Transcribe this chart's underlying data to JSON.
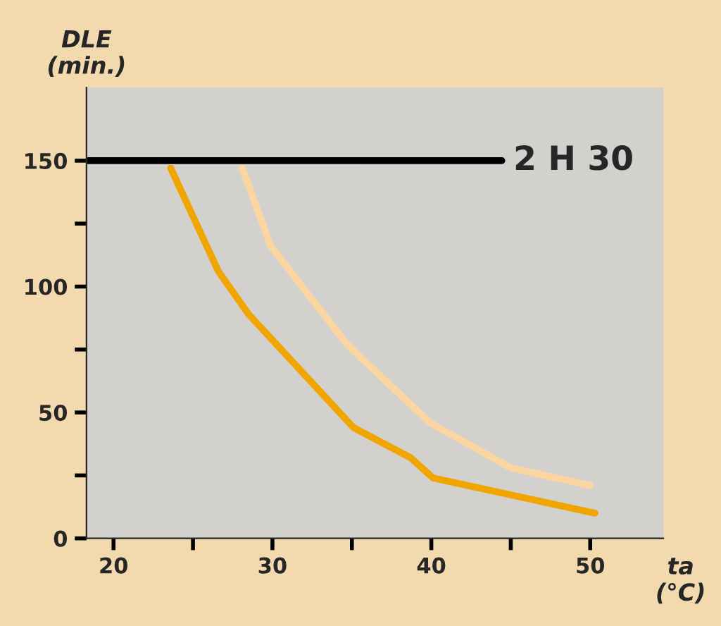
{
  "chart_data": {
    "type": "line",
    "xlabel": "ta\n(°C)",
    "ylabel": "DLE\n(min.)",
    "series": [
      {
        "color": "#f0a500",
        "x": [
          23.6,
          26.6,
          28.5,
          35.1,
          38.7,
          40.1,
          50.3
        ],
        "values": [
          147,
          106,
          89,
          44,
          32,
          24,
          10
        ]
      },
      {
        "color": "#fcd6a0",
        "x": [
          28.1,
          29.9,
          34.7,
          39.9,
          45,
          50
        ],
        "values": [
          147,
          116,
          77,
          46,
          28,
          21
        ]
      }
    ],
    "xlim": [
      18.3,
      54.6
    ],
    "ylim": [
      0,
      179
    ],
    "xticks": [
      20,
      {
        "value": 25,
        "label": null
      },
      30,
      {
        "value": 35,
        "label": null
      },
      40,
      {
        "value": 45,
        "label": null
      },
      50
    ],
    "yticks": [
      0,
      {
        "value": 25,
        "label": null
      },
      50,
      {
        "value": 75,
        "label": null
      },
      100,
      {
        "value": 125,
        "label": null
      },
      150
    ],
    "ref_lines": [
      {
        "axis": "y",
        "value": 150,
        "label": "2 H 30",
        "color": "#000000"
      }
    ],
    "grid": false,
    "legend": false,
    "marker": "none",
    "line_style": "solid"
  }
}
